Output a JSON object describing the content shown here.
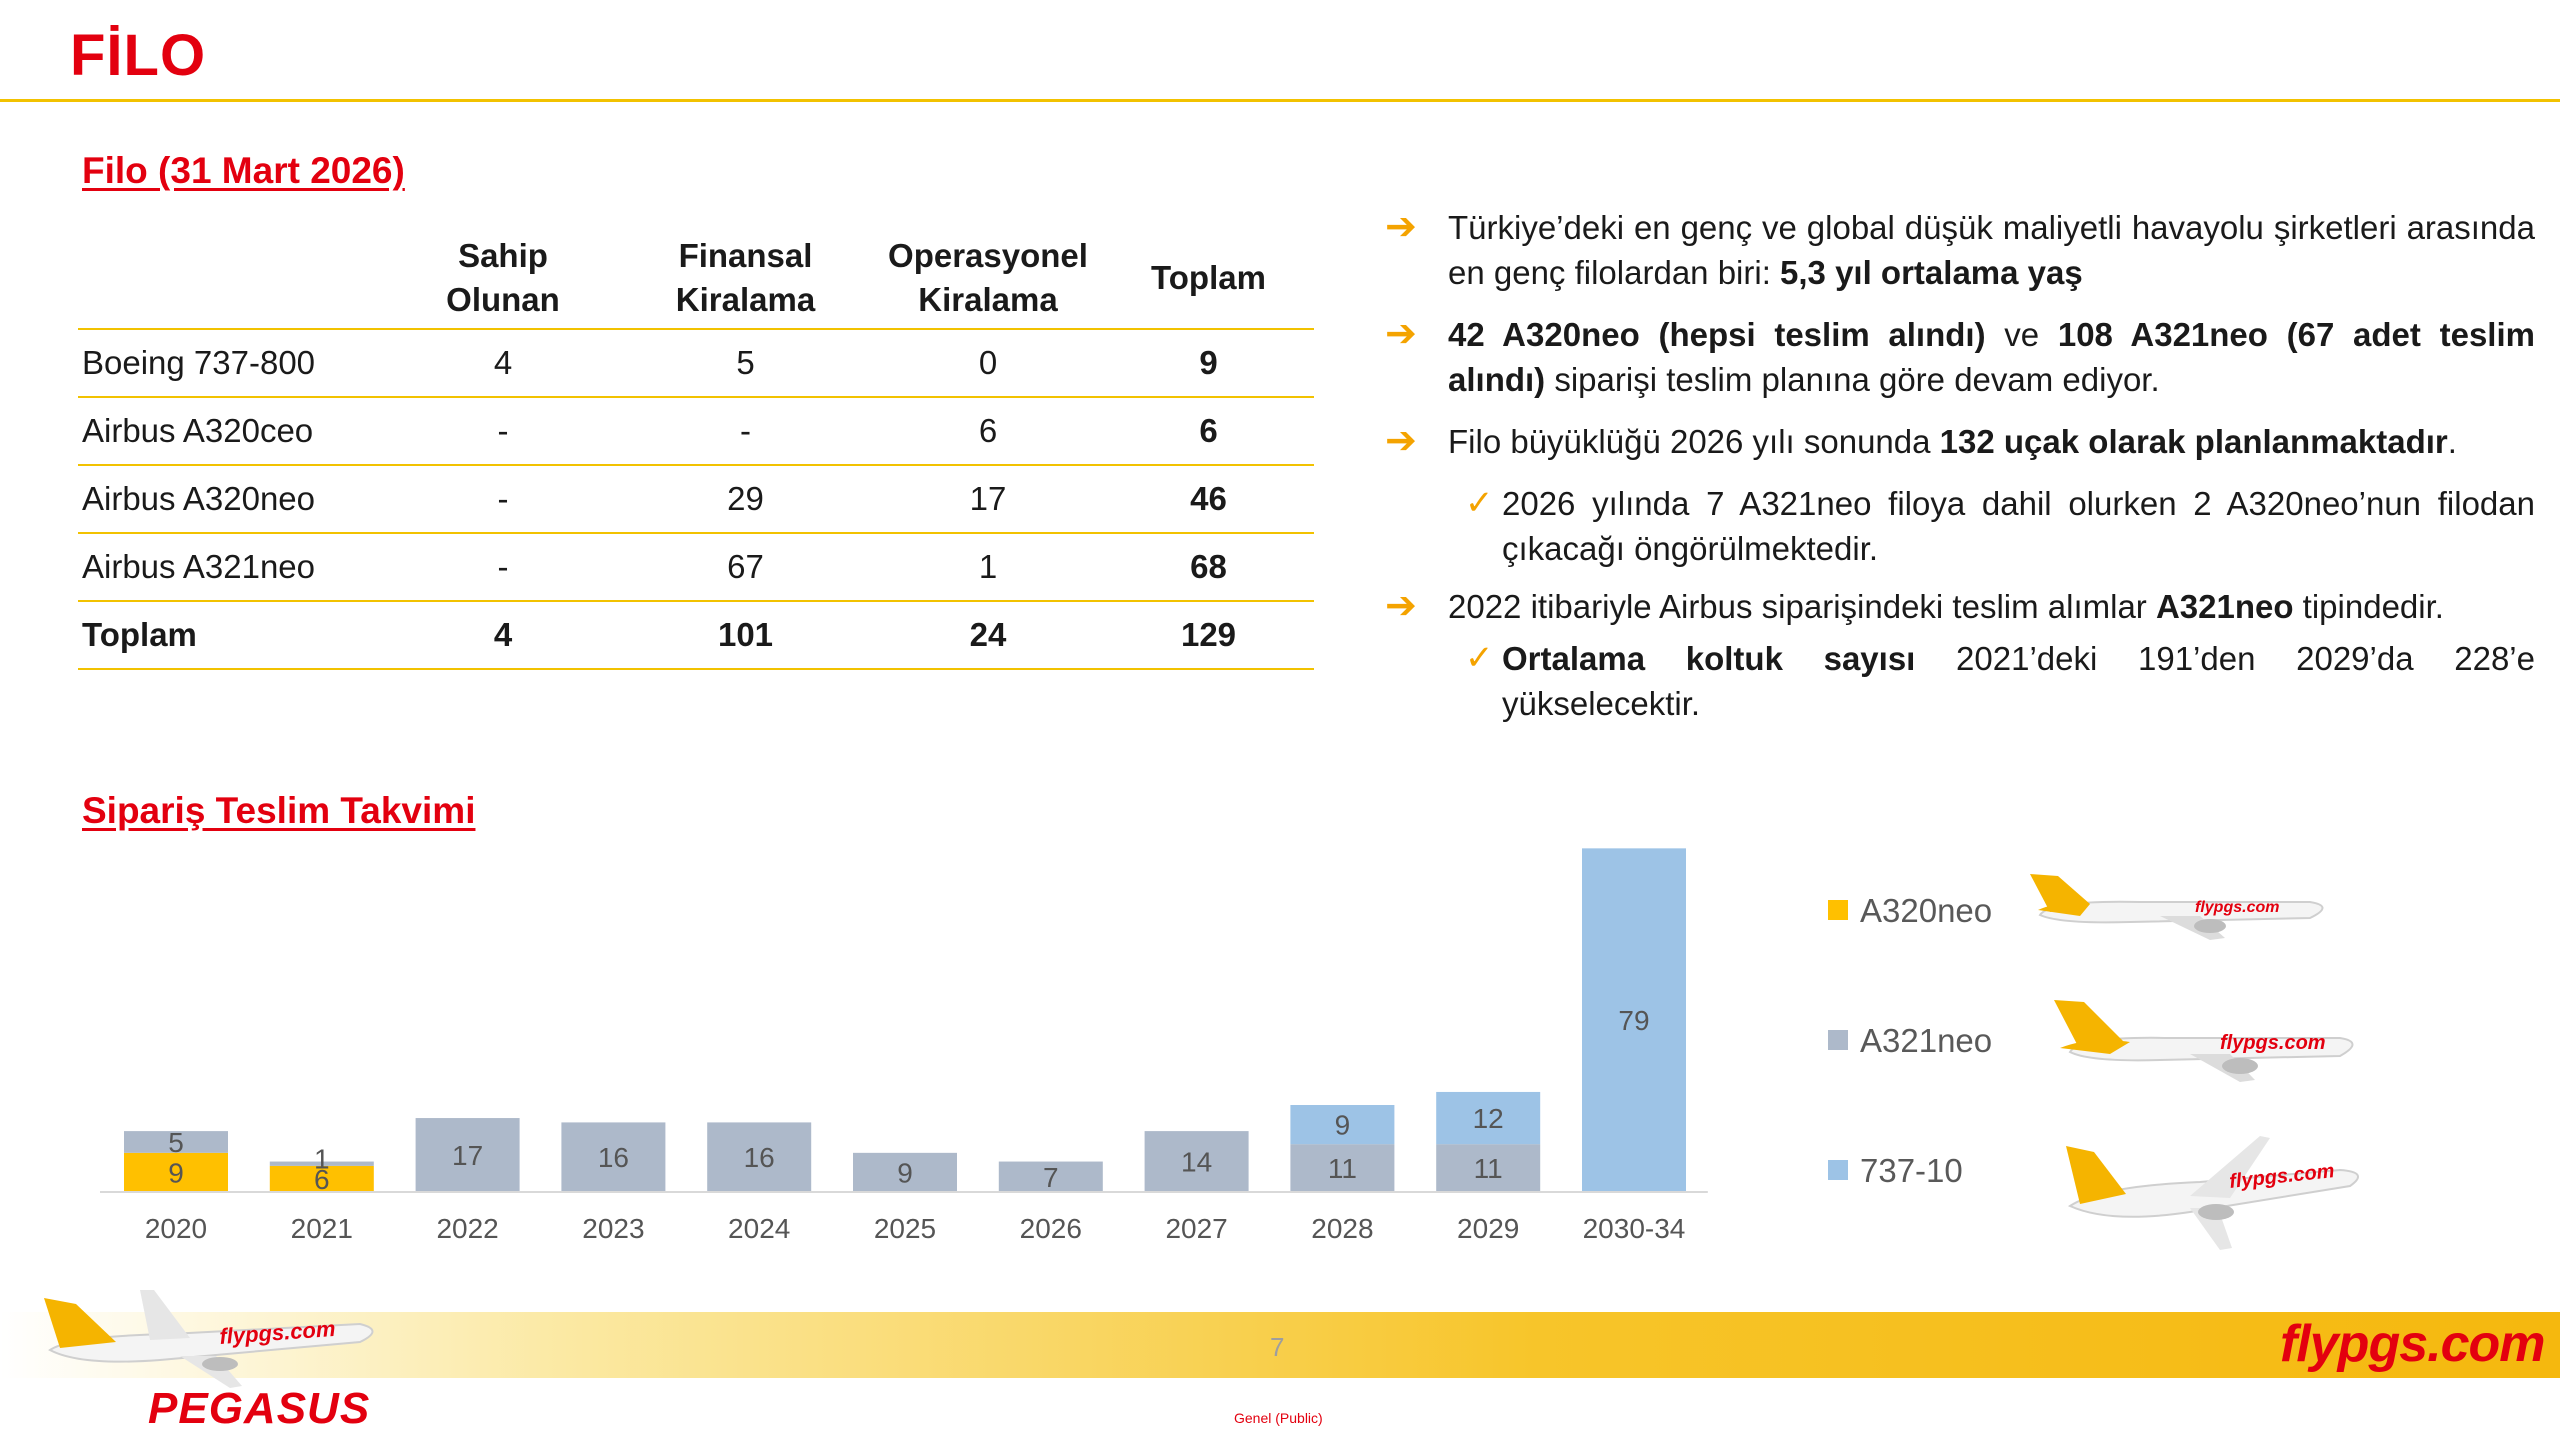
{
  "header": {
    "title": "FİLO"
  },
  "fleet": {
    "heading": "Filo (31 Mart 2026)",
    "columns": [
      "",
      "Sahip Olunan",
      "Finansal Kiralama",
      "Operasyonel Kiralama",
      "Toplam"
    ],
    "col_lines": [
      [
        "Sahip",
        "Olunan"
      ],
      [
        "Finansal",
        "Kiralama"
      ],
      [
        "Operasyonel",
        "Kiralama"
      ],
      [
        "Toplam"
      ]
    ],
    "rows": [
      [
        "Boeing 737-800",
        "4",
        "5",
        "0",
        "9"
      ],
      [
        "Airbus A320ceo",
        "-",
        "-",
        "6",
        "6"
      ],
      [
        "Airbus A320neo",
        "-",
        "29",
        "17",
        "46"
      ],
      [
        "Airbus A321neo",
        "-",
        "67",
        "1",
        "68"
      ],
      [
        "Toplam",
        "4",
        "101",
        "24",
        "129"
      ]
    ]
  },
  "bullets": {
    "b1_text": "Türkiye’deki en genç ve global düşük maliyetli havayolu şirketleri arasında en genç filolardan biri: ",
    "b1_bold": "5,3 yıl ortalama yaş",
    "b2_bold1": "42 A320neo (hepsi teslim alındı)",
    "b2_text1": " ve ",
    "b2_bold2": "108 A321neo (67 adet teslim alındı)",
    "b2_text2": " siparişi teslim planına göre devam ediyor.",
    "b3_text": "Filo büyüklüğü 2026 yılı sonunda ",
    "b3_bold": "132 uçak olarak planlanmaktadır",
    "b3_end": ".",
    "b4_text": "2026 yılında 7 A321neo filoya dahil olurken 2 A320neo’nun filodan çıkacağı öngörülmektedir.",
    "b5_text": "2022 itibariyle Airbus siparişindeki teslim alımlar ",
    "b5_bold": "A321neo",
    "b5_end": " tipindedir.",
    "b6_bold": "Ortalama koltuk sayısı",
    "b6_text": " 2021’deki 191’den 2029’da 228’e yükselecektir.",
    "arrow_icon": "arrow-right-icon",
    "check_icon": "checkmark-icon"
  },
  "schedule": {
    "heading": "Sipariş Teslim Takvimi"
  },
  "chart_data": {
    "type": "bar",
    "stacked": true,
    "categories": [
      "2020",
      "2021",
      "2022",
      "2023",
      "2024",
      "2025",
      "2026",
      "2027",
      "2028",
      "2029",
      "2030-34"
    ],
    "series": [
      {
        "name": "A320neo",
        "color": "#ffc000",
        "values": [
          9,
          6,
          0,
          0,
          0,
          0,
          0,
          0,
          0,
          0,
          0
        ]
      },
      {
        "name": "A321neo",
        "color": "#adb9ca",
        "values": [
          5,
          1,
          17,
          16,
          16,
          9,
          7,
          14,
          11,
          11,
          0
        ]
      },
      {
        "name": "737-10",
        "color": "#9dc3e6",
        "values": [
          0,
          0,
          0,
          0,
          0,
          0,
          0,
          0,
          9,
          12,
          79
        ]
      }
    ],
    "ylim": [
      0,
      80
    ],
    "grid": false,
    "legend": "right"
  },
  "legend": [
    {
      "label": "A320neo",
      "color": "#ffc000"
    },
    {
      "label": "A321neo",
      "color": "#adb9ca"
    },
    {
      "label": "737-10",
      "color": "#9dc3e6"
    }
  ],
  "footer": {
    "page_number": "7",
    "brand": "flypgs.com",
    "plane_brand": "flypgs.com",
    "logo_word": "PEGASUS",
    "classification": "Genel (Public)"
  }
}
